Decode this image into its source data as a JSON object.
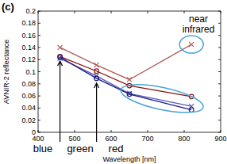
{
  "chart_data": {
    "type": "line",
    "title": "(c)",
    "x_label": "Wavelength [nm]",
    "y_label": "AVNIR-2 reflectance",
    "x": [
      460,
      560,
      650,
      820
    ],
    "xlim": [
      400,
      900
    ],
    "xticks": [
      400,
      500,
      600,
      700,
      800,
      900
    ],
    "ylim": [
      0,
      0.2
    ],
    "yticks": [
      0,
      0.02,
      0.04,
      0.06,
      0.08,
      0.1,
      0.12,
      0.14,
      0.16,
      0.18,
      0.2
    ],
    "grid": false,
    "annotations": [
      "blue",
      "green",
      "red",
      "near infrared"
    ],
    "series": [
      {
        "color": "#b35a5a",
        "marker": "x",
        "values": [
          0.14,
          0.111,
          0.087,
          0.145
        ]
      },
      {
        "color": "#8b1010",
        "marker": "circle",
        "values": [
          0.125,
          0.101,
          0.077,
          0.059
        ]
      },
      {
        "color": "#5a5ab8",
        "marker": "x",
        "values": [
          0.122,
          0.093,
          0.064,
          0.043
        ]
      },
      {
        "color": "#1c1c85",
        "marker": "circle",
        "values": [
          0.124,
          0.089,
          0.063,
          0.037
        ]
      }
    ]
  }
}
